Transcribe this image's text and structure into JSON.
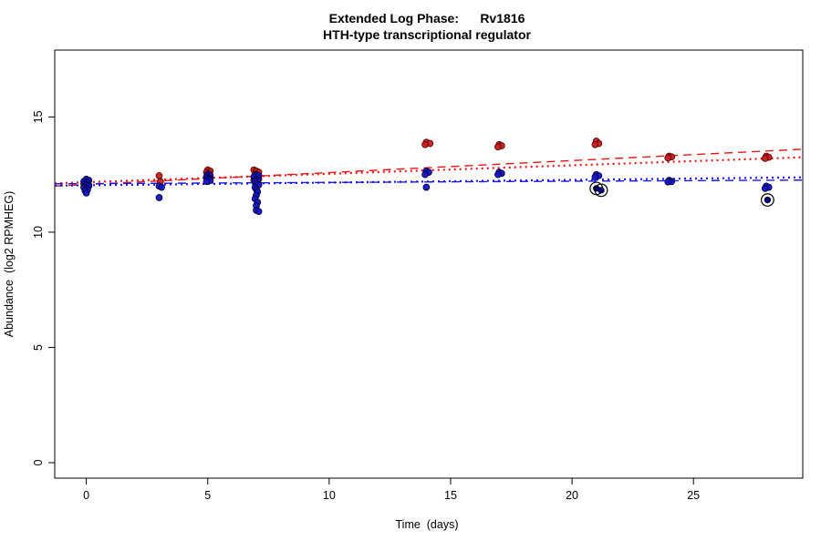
{
  "chart_data": {
    "type": "scatter",
    "title": "Extended Log Phase:      Rv1816",
    "subtitle": "HTH-type transcriptional regulator",
    "xlabel": "Time  (days)",
    "ylabel": "Abundance  (log2 RPMHEG)",
    "xlim": [
      -1.3,
      29.5
    ],
    "ylim": [
      -0.67,
      17.9
    ],
    "xticks": [
      0,
      5,
      10,
      15,
      20,
      25
    ],
    "yticks": [
      0,
      5,
      10,
      15
    ],
    "grid": false,
    "legend": "none",
    "colors": {
      "red_series": "#cc1f1f",
      "red_edge": "#550000",
      "blue_series": "#1414cc",
      "blue_edge": "#000033",
      "outlier_ring": "#000000",
      "outlier_fill": "#00008b",
      "red_line": "#e81717",
      "blue_line": "#1a1ae8"
    },
    "series": [
      {
        "name": "red",
        "color": "#cc1f1f",
        "edge": "#550000",
        "points": [
          [
            0.0,
            12.2
          ],
          [
            -0.1,
            12.1
          ],
          [
            0.1,
            12.05
          ],
          [
            0.0,
            11.95
          ],
          [
            -0.05,
            11.85
          ],
          [
            3.0,
            12.45
          ],
          [
            3.05,
            12.2
          ],
          [
            5.0,
            12.7
          ],
          [
            5.1,
            12.65
          ],
          [
            4.95,
            12.6
          ],
          [
            5.05,
            12.55
          ],
          [
            5.0,
            12.45
          ],
          [
            5.1,
            12.4
          ],
          [
            6.9,
            12.7
          ],
          [
            7.0,
            12.65
          ],
          [
            7.1,
            12.6
          ],
          [
            6.95,
            12.5
          ],
          [
            7.05,
            12.45
          ],
          [
            7.0,
            12.35
          ],
          [
            7.1,
            12.3
          ],
          [
            6.9,
            12.25
          ],
          [
            14.0,
            13.9
          ],
          [
            14.15,
            13.85
          ],
          [
            13.95,
            13.8
          ],
          [
            17.0,
            13.8
          ],
          [
            17.1,
            13.75
          ],
          [
            16.95,
            13.7
          ],
          [
            21.0,
            13.95
          ],
          [
            21.1,
            13.85
          ],
          [
            20.95,
            13.8
          ],
          [
            24.0,
            13.3
          ],
          [
            24.1,
            13.27
          ],
          [
            23.95,
            13.22
          ],
          [
            28.0,
            13.3
          ],
          [
            28.1,
            13.25
          ],
          [
            27.95,
            13.2
          ]
        ]
      },
      {
        "name": "blue",
        "color": "#1414cc",
        "edge": "#000033",
        "points": [
          [
            0.0,
            12.3
          ],
          [
            0.1,
            12.25
          ],
          [
            -0.1,
            12.2
          ],
          [
            0.05,
            12.15
          ],
          [
            -0.05,
            12.1
          ],
          [
            0.0,
            12.05
          ],
          [
            0.1,
            12.0
          ],
          [
            -0.1,
            11.95
          ],
          [
            0.0,
            11.9
          ],
          [
            0.05,
            11.85
          ],
          [
            -0.05,
            11.8
          ],
          [
            0.0,
            11.7
          ],
          [
            3.0,
            12.0
          ],
          [
            3.1,
            11.95
          ],
          [
            3.0,
            11.5
          ],
          [
            5.0,
            12.5
          ],
          [
            5.1,
            12.45
          ],
          [
            4.95,
            12.4
          ],
          [
            5.05,
            12.35
          ],
          [
            5.0,
            12.3
          ],
          [
            5.1,
            12.25
          ],
          [
            4.95,
            12.2
          ],
          [
            7.0,
            12.5
          ],
          [
            7.1,
            12.45
          ],
          [
            6.9,
            12.4
          ],
          [
            7.0,
            12.3
          ],
          [
            7.05,
            12.25
          ],
          [
            6.95,
            12.2
          ],
          [
            7.0,
            12.1
          ],
          [
            7.1,
            12.05
          ],
          [
            6.95,
            11.95
          ],
          [
            7.0,
            11.85
          ],
          [
            7.05,
            11.75
          ],
          [
            7.0,
            11.6
          ],
          [
            6.95,
            11.45
          ],
          [
            7.05,
            11.3
          ],
          [
            7.0,
            11.15
          ],
          [
            7.0,
            10.95
          ],
          [
            7.1,
            10.9
          ],
          [
            14.0,
            12.65
          ],
          [
            14.1,
            12.6
          ],
          [
            13.95,
            12.5
          ],
          [
            14.0,
            11.95
          ],
          [
            17.0,
            12.6
          ],
          [
            17.1,
            12.55
          ],
          [
            16.95,
            12.5
          ],
          [
            21.0,
            12.5
          ],
          [
            21.1,
            12.45
          ],
          [
            20.95,
            12.4
          ],
          [
            24.0,
            12.25
          ],
          [
            24.1,
            12.2
          ],
          [
            23.95,
            12.18
          ],
          [
            28.0,
            12.0
          ],
          [
            28.1,
            11.95
          ],
          [
            27.95,
            11.9
          ]
        ]
      }
    ],
    "outliers": {
      "name": "circled-outliers",
      "fill": "#00008b",
      "ring": "#000000",
      "points": [
        [
          21.0,
          11.9
        ],
        [
          21.2,
          11.82
        ],
        [
          28.05,
          11.4
        ]
      ]
    },
    "trend_lines": [
      {
        "name": "red-longdash",
        "color": "#e81717",
        "style": "longdash",
        "x": [
          -1.3,
          29.5
        ],
        "y": [
          12.0,
          13.6
        ]
      },
      {
        "name": "red-dotted",
        "color": "#e81717",
        "style": "dotted",
        "x": [
          -1.3,
          29.5
        ],
        "y": [
          12.12,
          13.25
        ]
      },
      {
        "name": "blue-longdash",
        "color": "#1a1ae8",
        "style": "longdash",
        "x": [
          -1.3,
          29.5
        ],
        "y": [
          12.1,
          12.26
        ]
      },
      {
        "name": "blue-dotted",
        "color": "#1a1ae8",
        "style": "dotted",
        "x": [
          -1.3,
          29.5
        ],
        "y": [
          12.02,
          12.38
        ]
      }
    ]
  }
}
